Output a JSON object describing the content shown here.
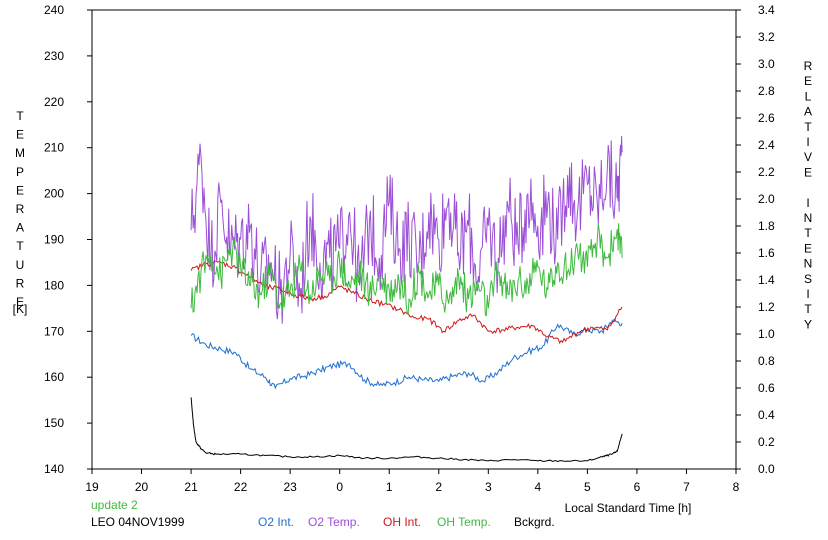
{
  "chart_data": {
    "type": "line",
    "x_ticks": [
      "19",
      "20",
      "21",
      "22",
      "23",
      "0",
      "1",
      "2",
      "3",
      "4",
      "5",
      "6",
      "7",
      "8"
    ],
    "xlim": [
      19,
      32
    ],
    "xlabel": "Local Standard Time [h]",
    "left_axis": {
      "label": "TEMPERATURE",
      "unit": "[K]",
      "ylim": [
        140,
        240
      ],
      "ticks": [
        "140",
        "150",
        "160",
        "170",
        "180",
        "190",
        "200",
        "210",
        "220",
        "230",
        "240"
      ]
    },
    "right_axis": {
      "label": "RELATIVE INTENSITY",
      "ylim": [
        0.0,
        3.4
      ],
      "ticks": [
        "0.0",
        "0.2",
        "0.4",
        "0.6",
        "0.8",
        "1.0",
        "1.2",
        "1.4",
        "1.6",
        "1.8",
        "2.0",
        "2.2",
        "2.4",
        "2.6",
        "2.8",
        "3.0",
        "3.2",
        "3.4"
      ]
    },
    "update_label": "update 2",
    "station_label": "LEO 04NOV1999",
    "legend_placement": "bottom",
    "grid": false,
    "series": [
      {
        "name": "O2 Int.",
        "axis": "right",
        "color": "#1f6fd0",
        "x": [
          21.0,
          21.3,
          21.6,
          21.9,
          22.2,
          22.5,
          22.7,
          23.0,
          23.3,
          23.6,
          23.9,
          24.2,
          24.5,
          24.8,
          25.1,
          25.4,
          25.7,
          26.0,
          26.3,
          26.6,
          26.9,
          27.2,
          27.5,
          27.8,
          28.1,
          28.4,
          28.7,
          29.0,
          29.3,
          29.5,
          29.7
        ],
        "y": [
          0.99,
          0.92,
          0.89,
          0.86,
          0.74,
          0.68,
          0.6,
          0.67,
          0.69,
          0.73,
          0.77,
          0.78,
          0.66,
          0.62,
          0.64,
          0.68,
          0.66,
          0.65,
          0.69,
          0.71,
          0.65,
          0.72,
          0.82,
          0.87,
          0.91,
          1.07,
          1.0,
          1.03,
          1.02,
          1.1,
          1.08
        ]
      },
      {
        "name": "O2 Temp.",
        "axis": "left",
        "color": "#9b4fd6",
        "x": [
          21.0,
          21.2,
          21.4,
          21.6,
          21.8,
          22.0,
          22.2,
          22.4,
          22.6,
          22.8,
          23.0,
          23.2,
          23.4,
          23.6,
          23.8,
          24.0,
          24.2,
          24.4,
          24.6,
          24.8,
          25.0,
          25.2,
          25.4,
          25.6,
          25.8,
          26.0,
          26.2,
          26.4,
          26.6,
          26.8,
          27.0,
          27.2,
          27.4,
          27.6,
          27.8,
          28.0,
          28.2,
          28.4,
          28.6,
          28.8,
          29.0,
          29.2,
          29.4,
          29.6,
          29.7
        ],
        "y": [
          192,
          208,
          186,
          198,
          188,
          190,
          193,
          181,
          185,
          178,
          187,
          178,
          195,
          185,
          186,
          188,
          196,
          180,
          194,
          186,
          198,
          188,
          191,
          185,
          196,
          190,
          199,
          187,
          193,
          182,
          193,
          186,
          197,
          189,
          200,
          193,
          198,
          190,
          204,
          196,
          202,
          198,
          205,
          199,
          209
        ]
      },
      {
        "name": "OH Int.",
        "axis": "right",
        "color": "#d01818",
        "x": [
          21.0,
          21.3,
          21.6,
          21.9,
          22.2,
          22.5,
          22.8,
          23.1,
          23.4,
          23.7,
          24.0,
          24.3,
          24.6,
          24.9,
          25.2,
          25.5,
          25.8,
          26.1,
          26.4,
          26.7,
          27.0,
          27.3,
          27.6,
          27.9,
          28.2,
          28.5,
          28.8,
          29.1,
          29.4,
          29.7
        ],
        "y": [
          1.47,
          1.52,
          1.53,
          1.49,
          1.42,
          1.35,
          1.33,
          1.29,
          1.26,
          1.28,
          1.35,
          1.3,
          1.25,
          1.22,
          1.18,
          1.12,
          1.11,
          1.02,
          1.1,
          1.14,
          1.02,
          1.03,
          1.05,
          1.06,
          0.98,
          0.94,
          1.01,
          1.05,
          1.03,
          1.2
        ]
      },
      {
        "name": "OH Temp.",
        "axis": "left",
        "color": "#3fba3f",
        "x": [
          21.0,
          21.2,
          21.4,
          21.6,
          21.8,
          22.0,
          22.2,
          22.4,
          22.6,
          22.8,
          23.0,
          23.2,
          23.4,
          23.6,
          23.8,
          24.0,
          24.2,
          24.4,
          24.6,
          24.8,
          25.0,
          25.2,
          25.4,
          25.6,
          25.8,
          26.0,
          26.2,
          26.4,
          26.6,
          26.8,
          27.0,
          27.2,
          27.4,
          27.6,
          27.8,
          28.0,
          28.2,
          28.4,
          28.6,
          28.8,
          29.0,
          29.2,
          29.4,
          29.6,
          29.7
        ],
        "y": [
          175,
          183,
          187,
          182,
          188,
          184,
          180,
          178,
          183,
          176,
          179,
          184,
          178,
          183,
          181,
          185,
          180,
          183,
          178,
          182,
          179,
          181,
          177,
          183,
          178,
          180,
          176,
          182,
          177,
          180,
          175,
          183,
          178,
          181,
          180,
          184,
          179,
          185,
          183,
          188,
          184,
          190,
          186,
          192,
          186
        ]
      },
      {
        "name": "Bckgrd.",
        "axis": "right",
        "color": "#000000",
        "x": [
          21.0,
          21.05,
          21.1,
          21.2,
          21.3,
          21.5,
          22.0,
          22.5,
          23.0,
          23.5,
          24.0,
          24.5,
          25.0,
          25.5,
          26.0,
          26.5,
          27.0,
          27.5,
          28.0,
          28.5,
          29.0,
          29.3,
          29.5,
          29.6,
          29.7
        ],
        "y": [
          0.53,
          0.32,
          0.2,
          0.15,
          0.12,
          0.11,
          0.11,
          0.1,
          0.09,
          0.09,
          0.1,
          0.08,
          0.08,
          0.09,
          0.08,
          0.07,
          0.06,
          0.07,
          0.06,
          0.06,
          0.06,
          0.09,
          0.11,
          0.13,
          0.26
        ]
      }
    ]
  }
}
